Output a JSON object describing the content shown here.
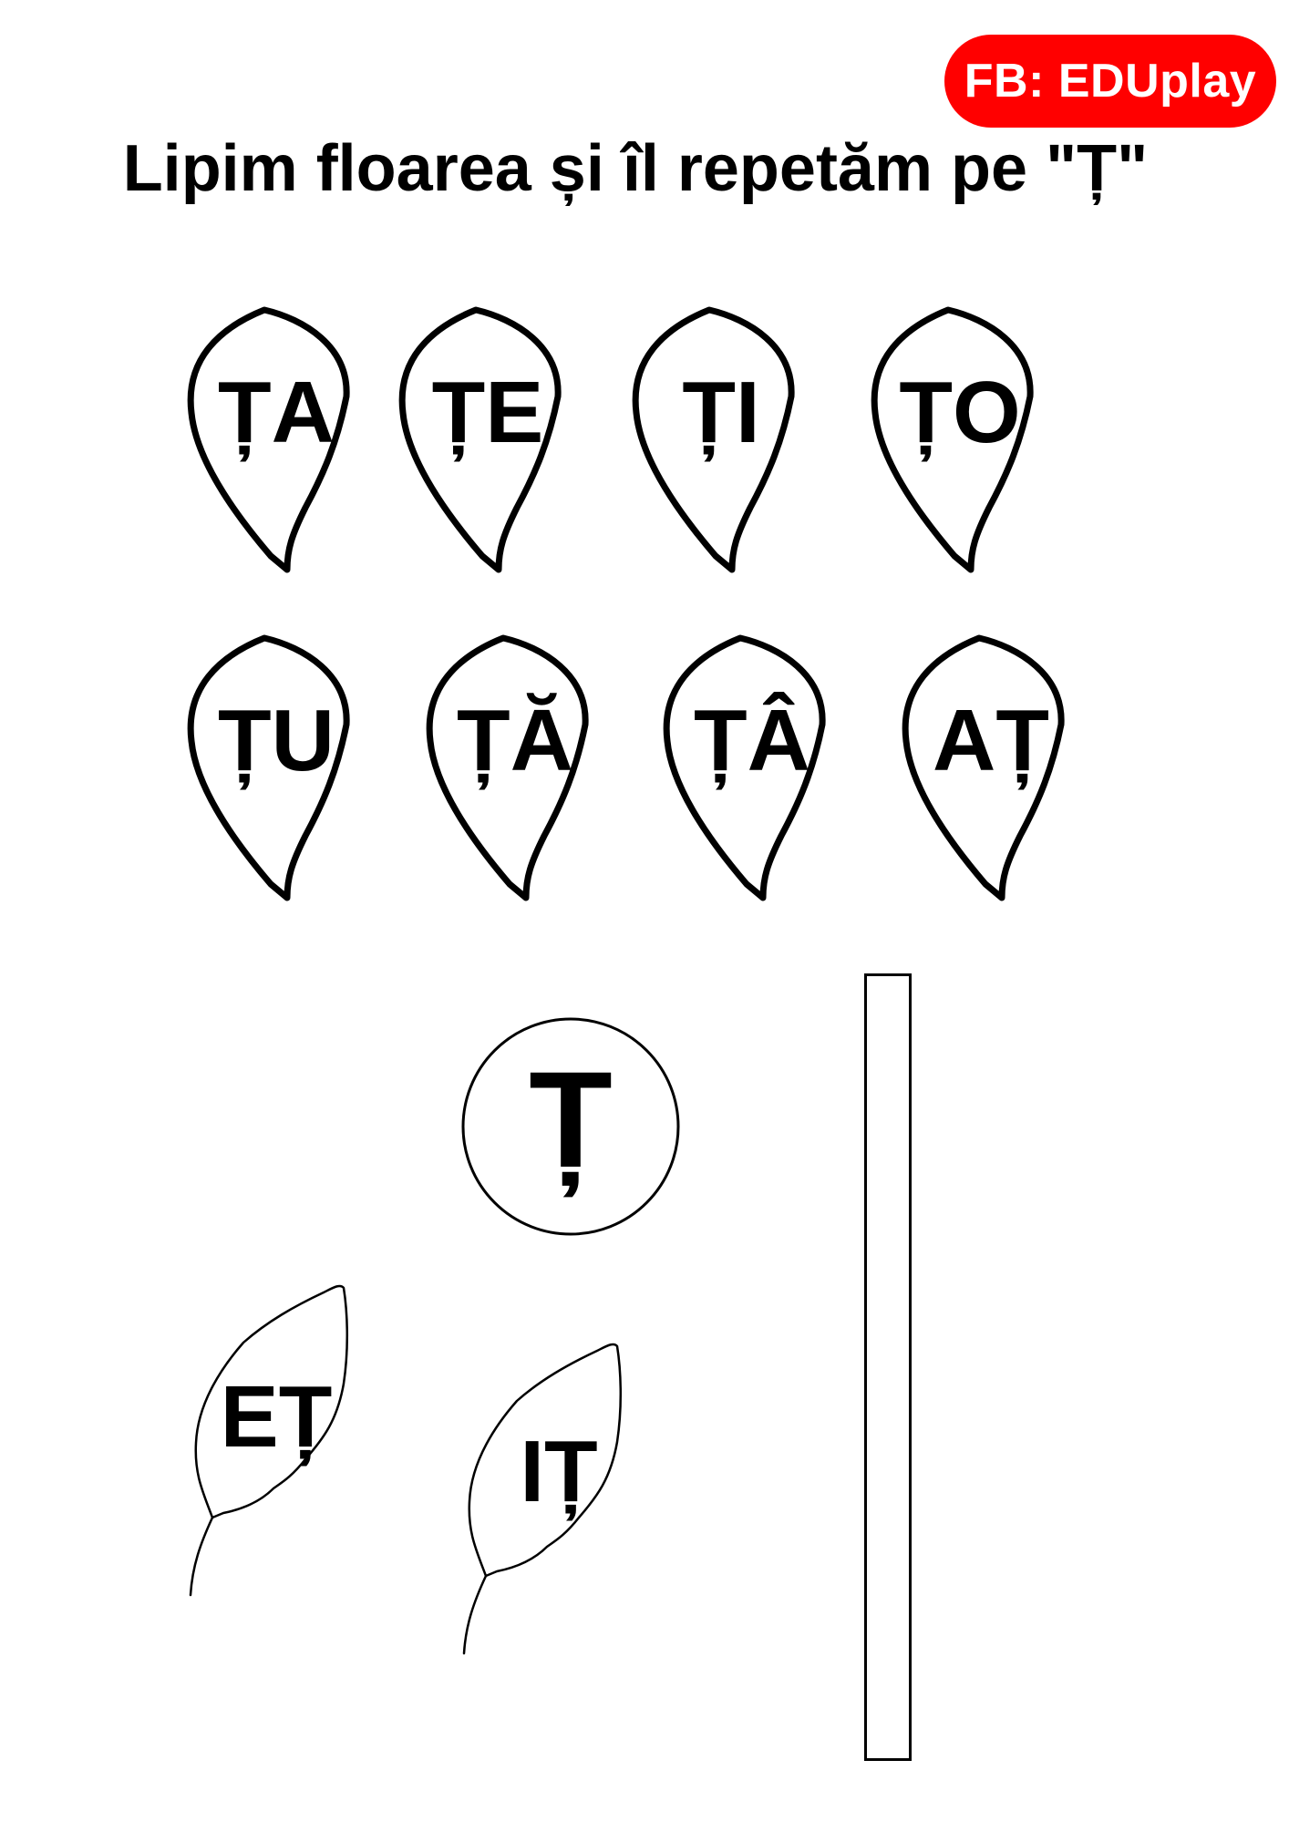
{
  "badge": {
    "label": "FB: EDUplay",
    "color": "#ff0000"
  },
  "title": "Lipim floarea și îl repetăm pe \"Ț\"",
  "petals": [
    "ȚA",
    "ȚE",
    "ȚI",
    "ȚO",
    "ȚU",
    "ȚĂ",
    "ȚÂ",
    "AȚ"
  ],
  "center": "Ț",
  "leaves": [
    "EȚ",
    "IȚ"
  ]
}
